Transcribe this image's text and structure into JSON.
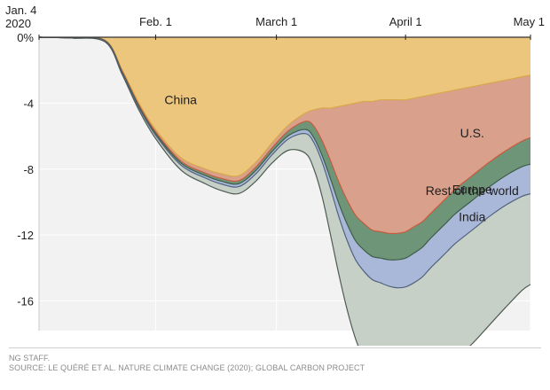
{
  "chart_data": {
    "type": "area",
    "x_labels": [
      {
        "text": "Jan. 4",
        "day": 0,
        "text2": "2020"
      },
      {
        "text": "Feb. 1",
        "day": 28
      },
      {
        "text": "March 1",
        "day": 57
      },
      {
        "text": "April 1",
        "day": 88
      },
      {
        "text": "May 1",
        "day": 118
      }
    ],
    "y_ticks": [
      {
        "value": 0,
        "label": "0%"
      },
      {
        "value": -4,
        "label": "-4"
      },
      {
        "value": -8,
        "label": "-8"
      },
      {
        "value": -12,
        "label": "-12"
      },
      {
        "value": -16,
        "label": "-16"
      }
    ],
    "ylim": [
      -17.8,
      0
    ],
    "xlim": [
      0,
      118
    ],
    "x": [
      0,
      8,
      16,
      20,
      24,
      28,
      34,
      40,
      44,
      48,
      52,
      56,
      60,
      64,
      66,
      68,
      70,
      72,
      74,
      76,
      78,
      80,
      82,
      84,
      86,
      88,
      90,
      92,
      94,
      96,
      98,
      100,
      104,
      108,
      112,
      116,
      118
    ],
    "series": [
      {
        "name": "China",
        "color": "#ecc67c",
        "stroke": "#d8a84a",
        "values": [
          0,
          -0.05,
          -0.2,
          -2.0,
          -4.0,
          -5.6,
          -7.3,
          -8.0,
          -8.3,
          -8.4,
          -7.6,
          -6.4,
          -5.3,
          -4.6,
          -4.4,
          -4.3,
          -4.3,
          -4.2,
          -4.1,
          -4.0,
          -3.9,
          -3.9,
          -3.8,
          -3.8,
          -3.8,
          -3.8,
          -3.7,
          -3.6,
          -3.5,
          -3.4,
          -3.3,
          -3.2,
          -3.0,
          -2.8,
          -2.6,
          -2.4,
          -2.3
        ]
      },
      {
        "name": "U.S.",
        "color": "#d9a08b",
        "stroke": "#c75b3c",
        "values": [
          0,
          0,
          -0.02,
          -0.08,
          -0.12,
          -0.15,
          -0.2,
          -0.25,
          -0.28,
          -0.3,
          -0.3,
          -0.3,
          -0.35,
          -0.5,
          -1.0,
          -2.0,
          -3.2,
          -4.6,
          -5.8,
          -6.8,
          -7.4,
          -7.8,
          -8.0,
          -8.1,
          -8.1,
          -8.0,
          -7.8,
          -7.6,
          -7.2,
          -6.8,
          -6.4,
          -6.0,
          -5.4,
          -4.8,
          -4.3,
          -3.9,
          -3.8
        ]
      },
      {
        "name": "Europe",
        "color": "#6e9578",
        "stroke": "#3e5e47",
        "values": [
          0,
          0,
          -0.02,
          -0.05,
          -0.08,
          -0.1,
          -0.12,
          -0.15,
          -0.17,
          -0.18,
          -0.2,
          -0.22,
          -0.3,
          -0.5,
          -0.7,
          -0.9,
          -1.1,
          -1.3,
          -1.45,
          -1.55,
          -1.6,
          -1.6,
          -1.6,
          -1.6,
          -1.6,
          -1.6,
          -1.6,
          -1.55,
          -1.5,
          -1.5,
          -1.5,
          -1.5,
          -1.5,
          -1.5,
          -1.5,
          -1.55,
          -1.6
        ]
      },
      {
        "name": "India",
        "color": "#a9b7d9",
        "stroke": "#52637f",
        "values": [
          0,
          0,
          -0.02,
          -0.05,
          -0.08,
          -0.1,
          -0.12,
          -0.15,
          -0.17,
          -0.18,
          -0.2,
          -0.2,
          -0.2,
          -0.25,
          -0.3,
          -0.4,
          -0.6,
          -0.8,
          -1.0,
          -1.15,
          -1.3,
          -1.4,
          -1.5,
          -1.6,
          -1.7,
          -1.75,
          -1.8,
          -1.8,
          -1.8,
          -1.8,
          -1.8,
          -1.8,
          -1.8,
          -1.8,
          -1.8,
          -1.8,
          -1.8
        ]
      },
      {
        "name": "Rest of the world",
        "color": "#c6d0c7",
        "stroke": "#4f5a54",
        "values": [
          0,
          0,
          -0.05,
          -0.1,
          -0.15,
          -0.2,
          -0.3,
          -0.35,
          -0.4,
          -0.42,
          -0.45,
          -0.5,
          -0.7,
          -1.2,
          -1.6,
          -2.1,
          -2.8,
          -3.5,
          -4.2,
          -4.8,
          -5.3,
          -5.7,
          -6.0,
          -6.3,
          -6.6,
          -6.8,
          -6.95,
          -7.0,
          -7.05,
          -7.0,
          -7.0,
          -7.0,
          -6.9,
          -6.6,
          -6.2,
          -5.7,
          -5.5
        ]
      }
    ],
    "labels": [
      {
        "text": "Rest of the world",
        "series": "Rest of the world"
      },
      {
        "text": "India",
        "series": "India"
      },
      {
        "text": "Europe",
        "series": "Europe"
      },
      {
        "text": "U.S.",
        "series": "U.S."
      },
      {
        "text": "China",
        "series": "China"
      }
    ],
    "grid": true
  },
  "credit": {
    "line1": "NG STAFF.",
    "line2": "SOURCE: LE QUÉRÉ ET AL. NATURE CLIMATE CHANGE (2020); GLOBAL CARBON PROJECT"
  }
}
